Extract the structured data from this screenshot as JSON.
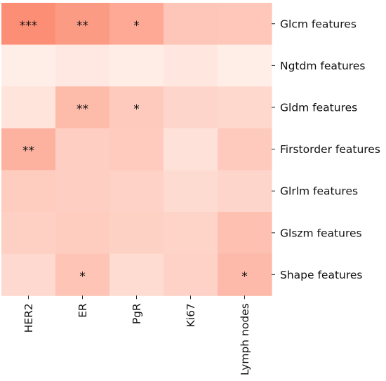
{
  "chart_data": {
    "type": "heatmap",
    "title": "",
    "xlabel": "",
    "ylabel": "",
    "x": [
      "HER2",
      "ER",
      "PgR",
      "Ki67",
      "Lymph nodes"
    ],
    "y": [
      "Glcm features",
      "Ngtdm features",
      "Gldm features",
      "Firstorder features",
      "Glrlm features",
      "Glszm features",
      "Shape features"
    ],
    "values": [
      [
        0.74,
        0.65,
        0.55,
        0.34,
        0.33
      ],
      [
        0.05,
        0.09,
        0.06,
        0.1,
        0.05
      ],
      [
        0.12,
        0.42,
        0.31,
        0.23,
        0.21
      ],
      [
        0.48,
        0.28,
        0.3,
        0.14,
        0.31
      ],
      [
        0.29,
        0.28,
        0.25,
        0.19,
        0.23
      ],
      [
        0.27,
        0.29,
        0.26,
        0.24,
        0.38
      ],
      [
        0.2,
        0.35,
        0.18,
        0.25,
        0.43
      ]
    ],
    "annotations": [
      [
        "***",
        "**",
        "*",
        "",
        ""
      ],
      [
        "",
        "",
        "",
        "",
        ""
      ],
      [
        "",
        "**",
        "*",
        "",
        ""
      ],
      [
        "**",
        "",
        "",
        "",
        ""
      ],
      [
        "",
        "",
        "",
        "",
        ""
      ],
      [
        "",
        "",
        "",
        "",
        ""
      ],
      [
        "",
        "*",
        "",
        "",
        "*"
      ]
    ],
    "colormap": "Reds",
    "color_low": "#fff5f0",
    "color_high": "#fb6a4a",
    "legend": "none"
  }
}
